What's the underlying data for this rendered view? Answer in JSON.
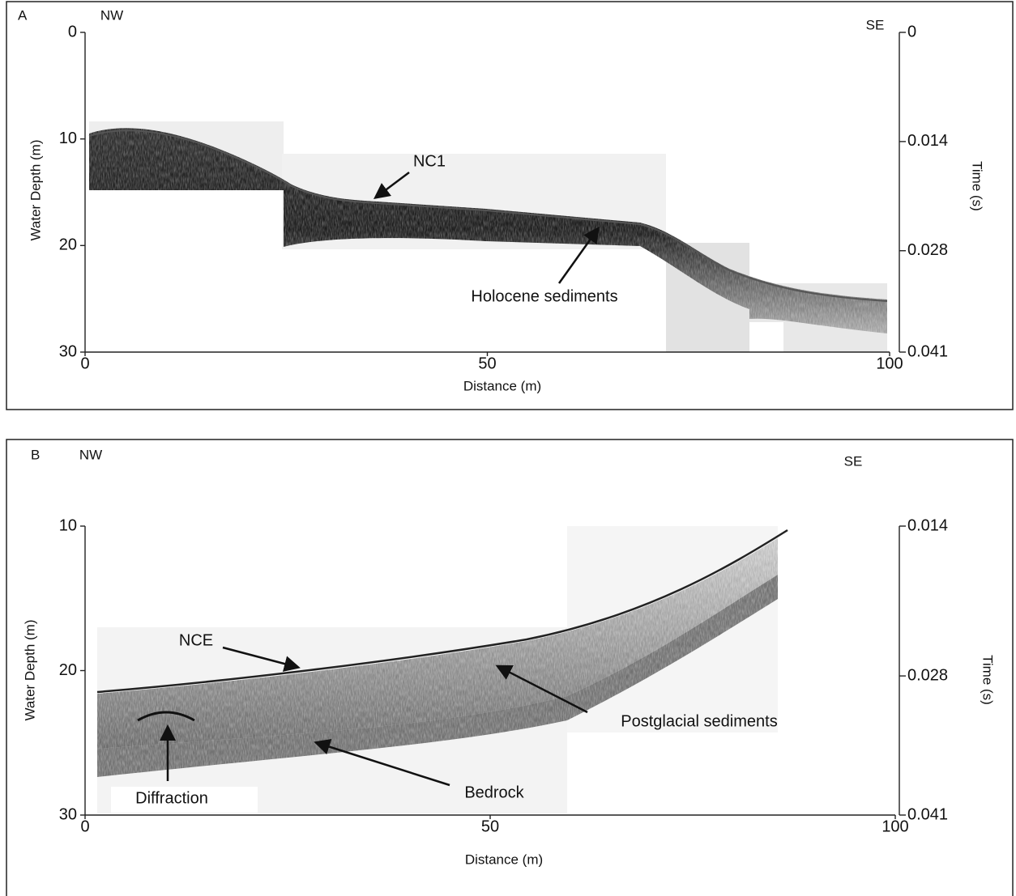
{
  "chart_data": [
    {
      "type": "seismic-profile",
      "panel_label": "A",
      "left_label": "NW",
      "right_label": "SE",
      "x_label": "Distance (m)",
      "y_label": "Water Depth (m)",
      "y2_label": "Time (s)",
      "xlim": [
        0,
        100
      ],
      "xticks": [
        0,
        50,
        100
      ],
      "ylim": [
        0,
        30
      ],
      "yticks": [
        0,
        10,
        20,
        30
      ],
      "invert_y": true,
      "y2lim": [
        0,
        0.041
      ],
      "y2ticks": [
        0,
        0.014,
        0.028,
        0.041
      ],
      "annotations": [
        "NC1",
        "Holocene sediments"
      ]
    },
    {
      "type": "seismic-profile",
      "panel_label": "B",
      "left_label": "NW",
      "right_label": "SE",
      "x_label": "Distance (m)",
      "y_label": "Water Depth (m)",
      "y2_label": "Time (s)",
      "xlim": [
        0,
        100
      ],
      "xticks": [
        0,
        50,
        100
      ],
      "ylim": [
        10,
        30
      ],
      "yticks": [
        10,
        20,
        30
      ],
      "invert_y": true,
      "y2lim": [
        0.014,
        0.041
      ],
      "y2ticks": [
        0.014,
        0.028,
        0.041
      ],
      "annotations": [
        "NCE",
        "Postglacial sediments",
        "Diffraction",
        "Bedrock"
      ]
    }
  ]
}
